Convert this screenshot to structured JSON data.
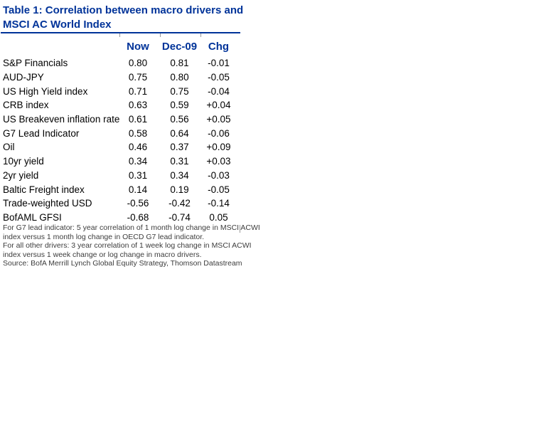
{
  "title": {
    "line1": "Table 1: Correlation between macro drivers and",
    "line2": "MSCI AC World Index"
  },
  "table": {
    "columns": [
      "Now",
      "Dec-09",
      "Chg"
    ],
    "rows": [
      {
        "label": "S&P Financials",
        "now": "0.80",
        "dec09": "0.81",
        "chg": "-0.01"
      },
      {
        "label": "AUD-JPY",
        "now": "0.75",
        "dec09": "0.80",
        "chg": "-0.05"
      },
      {
        "label": "US High Yield index",
        "now": "0.71",
        "dec09": "0.75",
        "chg": "-0.04"
      },
      {
        "label": "CRB index",
        "now": "0.63",
        "dec09": "0.59",
        "chg": "+0.04"
      },
      {
        "label": "US Breakeven inflation rate",
        "now": "0.61",
        "dec09": "0.56",
        "chg": "+0.05"
      },
      {
        "label": "G7 Lead Indicator",
        "now": "0.58",
        "dec09": "0.64",
        "chg": "-0.06"
      },
      {
        "label": "Oil",
        "now": "0.46",
        "dec09": "0.37",
        "chg": "+0.09"
      },
      {
        "label": "10yr yield",
        "now": "0.34",
        "dec09": "0.31",
        "chg": "+0.03"
      },
      {
        "label": "2yr yield",
        "now": "0.31",
        "dec09": "0.34",
        "chg": "-0.03"
      },
      {
        "label": "Baltic Freight index",
        "now": "0.14",
        "dec09": "0.19",
        "chg": "-0.05"
      },
      {
        "label": "Trade-weighted USD",
        "now": "-0.56",
        "dec09": "-0.42",
        "chg": "-0.14"
      },
      {
        "label": "BofAML GFSI",
        "now": "-0.68",
        "dec09": "-0.74",
        "chg": "0.05"
      }
    ]
  },
  "footnotes": [
    {
      "text": "For G7 lead indicator: 5 year correlation of 1 month log change in MSCI ACWI"
    },
    {
      "text": "index versus 1 month log change in OECD G7 lead indicator."
    },
    {
      "text": "For all other drivers: 3 year correlation of 1 week log change in MSCI ACWI"
    },
    {
      "text": "index versus 1 week change or log change in macro drivers."
    }
  ],
  "source": {
    "text": "Source: BofA Merrill Lynch Global Equity Strategy, Thomson Datastream"
  },
  "colors": {
    "accent_blue": "#003399",
    "body_text": "#000000",
    "footnote_text": "#3c3c3c",
    "tick_gray": "#999999",
    "background": "#ffffff"
  }
}
